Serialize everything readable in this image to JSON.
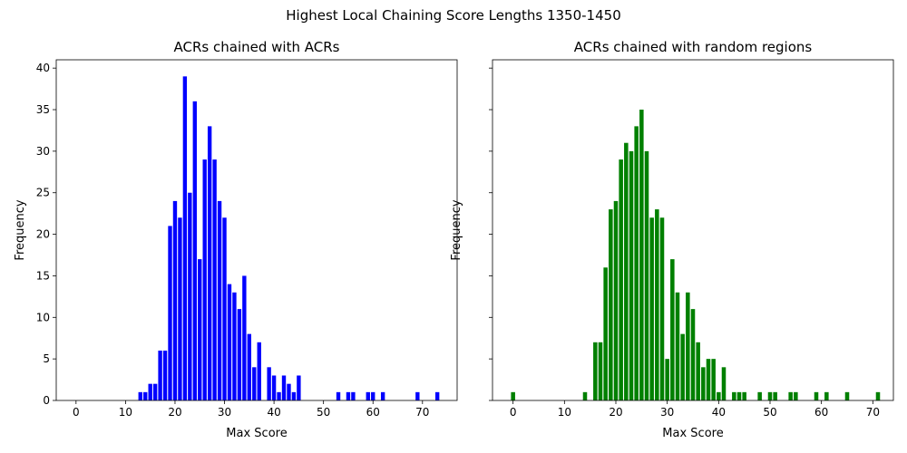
{
  "figure": {
    "suptitle": "Highest Local Chaining Score Lengths 1350-1450"
  },
  "chart_data": [
    {
      "type": "bar",
      "title": "ACRs chained with ACRs",
      "xlabel": "Max Score",
      "ylabel": "Frequency",
      "xlim": [
        -4,
        77
      ],
      "ylim": [
        0,
        41
      ],
      "xticks": [
        0,
        10,
        20,
        30,
        40,
        50,
        60,
        70
      ],
      "yticks": [
        0,
        5,
        10,
        15,
        20,
        25,
        30,
        35,
        40
      ],
      "color": "#0000ff",
      "bar_width": 0.8,
      "x": [
        13,
        14,
        15,
        16,
        17,
        18,
        19,
        20,
        21,
        22,
        23,
        24,
        25,
        26,
        27,
        28,
        29,
        30,
        31,
        32,
        33,
        34,
        35,
        36,
        37,
        39,
        40,
        41,
        42,
        43,
        44,
        45,
        53,
        55,
        56,
        59,
        60,
        62,
        69,
        73
      ],
      "values": [
        1,
        1,
        2,
        2,
        6,
        6,
        21,
        24,
        22,
        39,
        25,
        36,
        17,
        29,
        33,
        29,
        24,
        22,
        14,
        13,
        11,
        15,
        8,
        4,
        7,
        4,
        3,
        1,
        3,
        2,
        1,
        3,
        1,
        1,
        1,
        1,
        1,
        1,
        1,
        1
      ]
    },
    {
      "type": "bar",
      "title": "ACRs chained with random regions",
      "xlabel": "Max Score",
      "ylabel": "Frequency",
      "xlim": [
        -4,
        74
      ],
      "ylim": [
        0,
        41
      ],
      "sharey": true,
      "xticks": [
        0,
        10,
        20,
        30,
        40,
        50,
        60,
        70
      ],
      "yticks": [
        0,
        5,
        10,
        15,
        20,
        25,
        30,
        35,
        40
      ],
      "color": "#008000",
      "bar_width": 0.8,
      "x": [
        0,
        14,
        16,
        17,
        18,
        19,
        20,
        21,
        22,
        23,
        24,
        25,
        26,
        27,
        28,
        29,
        30,
        31,
        32,
        33,
        34,
        35,
        36,
        37,
        38,
        39,
        40,
        41,
        43,
        44,
        45,
        48,
        50,
        51,
        54,
        55,
        59,
        61,
        65,
        71
      ],
      "values": [
        1,
        1,
        7,
        7,
        16,
        23,
        24,
        29,
        31,
        30,
        33,
        35,
        30,
        22,
        23,
        22,
        5,
        17,
        13,
        8,
        13,
        11,
        7,
        4,
        5,
        5,
        1,
        4,
        1,
        1,
        1,
        1,
        1,
        1,
        1,
        1,
        1,
        1,
        1,
        1
      ]
    }
  ]
}
